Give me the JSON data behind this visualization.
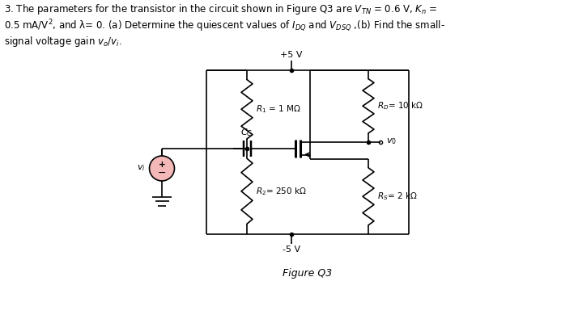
{
  "bg_color": "#ffffff",
  "text_color": "#000000",
  "vplus": "+5 V",
  "vminus": "-5 V",
  "R1_label": "$R_1$ = 1 MΩ",
  "R2_label": "$R_2$= 250 kΩ",
  "RD_label": "$R_D$= 10 kΩ",
  "RS_label": "$R_S$= 2 kΩ",
  "Cc_label": "$C_C$",
  "vi_label": "$v_i$",
  "vo_label": "$v_0$",
  "figure_label": "Figure Q3",
  "line1": "3. The parameters for the transistor in the circuit shown in Figure Q3 are $V_{TN}$ = 0.6 V, $K_n$ =",
  "line2": "0.5 mA/V$^2$, and λ= 0. (a) Determine the quiescent values of $I_{DQ}$ and $V_{DSQ}$ ,(b) Find the small-",
  "line3": "signal voltage gain $v_o$/$v_i$."
}
